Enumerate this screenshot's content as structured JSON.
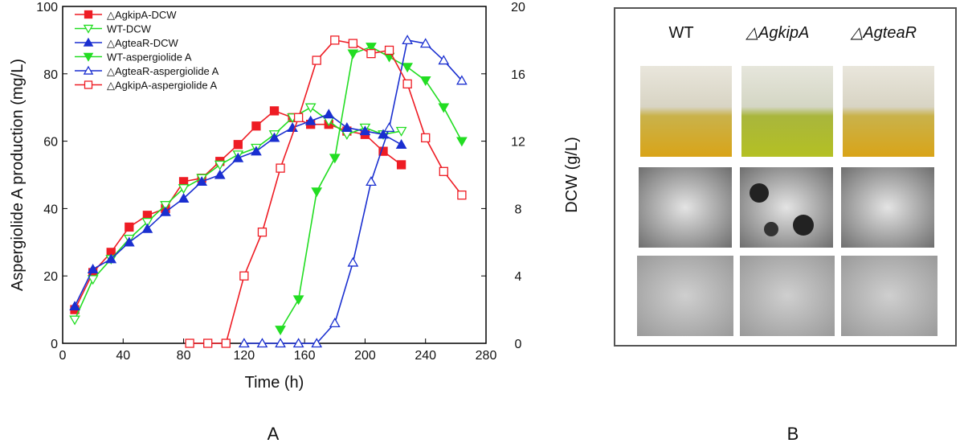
{
  "chart_data": {
    "type": "line",
    "xlabel": "Time (h)",
    "ylabel": "Aspergiolide A production (mg/L)",
    "y2label": "DCW (g/L)",
    "xlim": [
      0,
      280
    ],
    "xticks": [
      0,
      40,
      80,
      120,
      160,
      200,
      240,
      280
    ],
    "ylim": [
      0,
      100
    ],
    "yticks": [
      0,
      20,
      40,
      60,
      80,
      100
    ],
    "y2lim": [
      0,
      20
    ],
    "y2ticks": [
      0,
      4,
      8,
      12,
      16,
      20
    ],
    "legend": "upper left",
    "series": [
      {
        "name": "△AgkipA-DCW",
        "color": "#ee1c24",
        "marker": "square",
        "filled": true,
        "axis": "y2",
        "x": [
          8,
          20,
          32,
          44,
          56,
          68,
          80,
          92,
          104,
          116,
          128,
          140,
          152,
          164,
          176,
          188,
          200,
          212,
          224
        ],
        "values": [
          2.0,
          4.2,
          5.4,
          6.9,
          7.6,
          8.0,
          9.6,
          9.8,
          10.8,
          11.8,
          12.9,
          13.8,
          13.4,
          13.0,
          13.0,
          12.6,
          12.4,
          11.4,
          10.6
        ]
      },
      {
        "name": "WT-DCW",
        "color": "#22dd22",
        "marker": "down",
        "filled": false,
        "axis": "y2",
        "x": [
          8,
          20,
          32,
          44,
          56,
          68,
          80,
          92,
          104,
          116,
          128,
          140,
          152,
          164,
          176,
          188,
          200,
          212,
          224
        ],
        "values": [
          1.4,
          3.8,
          5.0,
          6.2,
          7.2,
          8.2,
          9.2,
          9.8,
          10.6,
          11.2,
          11.6,
          12.4,
          13.4,
          14.0,
          13.2,
          12.4,
          12.8,
          12.4,
          12.6
        ]
      },
      {
        "name": "△AgteaR-DCW",
        "color": "#1a2fd0",
        "marker": "up",
        "filled": true,
        "axis": "y2",
        "x": [
          8,
          20,
          32,
          44,
          56,
          68,
          80,
          92,
          104,
          116,
          128,
          140,
          152,
          164,
          176,
          188,
          200,
          212,
          224
        ],
        "values": [
          2.2,
          4.4,
          5.0,
          6.0,
          6.8,
          7.8,
          8.6,
          9.6,
          10.0,
          11.0,
          11.4,
          12.2,
          12.8,
          13.2,
          13.6,
          12.8,
          12.6,
          12.4,
          11.8
        ]
      },
      {
        "name": "WT-aspergiolide A",
        "color": "#22dd22",
        "marker": "down",
        "filled": true,
        "axis": "y",
        "x": [
          144,
          156,
          168,
          180,
          192,
          204,
          216,
          228,
          240,
          252,
          264
        ],
        "values": [
          4,
          13,
          45,
          55,
          86,
          88,
          85,
          82,
          78,
          70,
          60
        ]
      },
      {
        "name": "△AgteaR-aspergiolide A",
        "color": "#1a2fd0",
        "marker": "up",
        "filled": false,
        "axis": "y",
        "x": [
          120,
          132,
          144,
          156,
          168,
          180,
          192,
          204,
          216,
          228,
          240,
          252,
          264
        ],
        "values": [
          0,
          0,
          0,
          0,
          0,
          6,
          24,
          48,
          64,
          90,
          89,
          84,
          78
        ]
      },
      {
        "name": "△AgkipA-aspergiolide A",
        "color": "#ee1c24",
        "marker": "square",
        "filled": false,
        "axis": "y",
        "x": [
          84,
          96,
          108,
          120,
          132,
          144,
          156,
          168,
          180,
          192,
          204,
          216,
          228,
          240,
          252,
          264
        ],
        "values": [
          0,
          0,
          0,
          20,
          33,
          52,
          67,
          84,
          90,
          89,
          86,
          87,
          77,
          61,
          51,
          44
        ]
      }
    ]
  },
  "panels": {
    "a_label": "A",
    "b_label": "B",
    "b_columns": [
      "WT",
      "△AgkipA",
      "△AgteaR"
    ]
  }
}
